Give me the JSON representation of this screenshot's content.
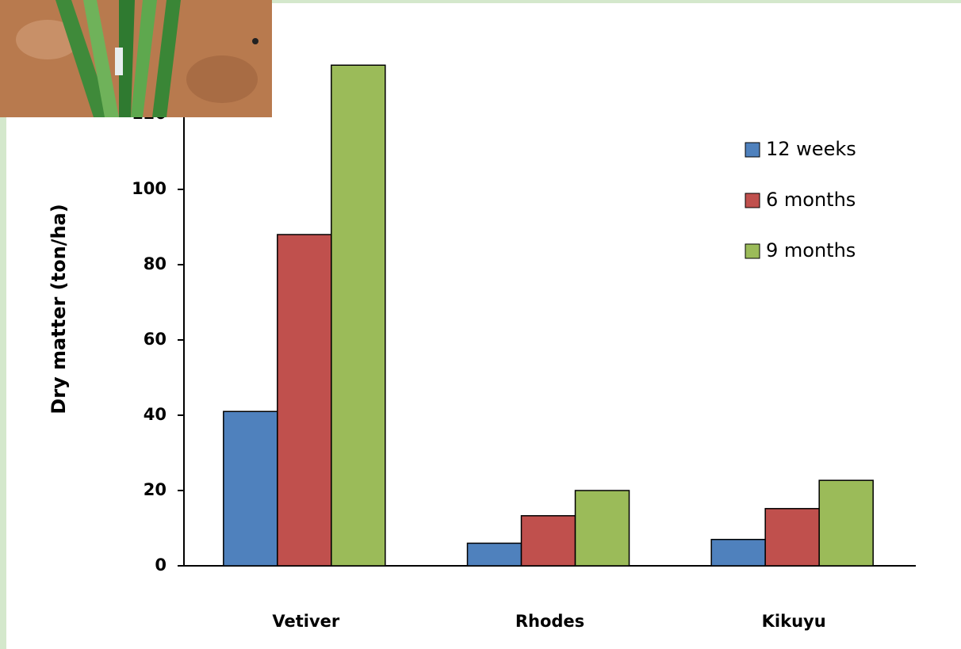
{
  "chart_data": {
    "type": "bar",
    "y_label": "Dry matter (ton/ha)",
    "categories": [
      "Vetiver",
      "Rhodes",
      "Kikuyu"
    ],
    "series": [
      {
        "name": "12 weeks",
        "color": "#4f81bd",
        "values": [
          41,
          6,
          7
        ]
      },
      {
        "name": "6 months",
        "color": "#c0504d",
        "values": [
          88,
          13.3,
          15.2
        ]
      },
      {
        "name": "9 months",
        "color": "#9bbb59",
        "values": [
          133,
          20,
          22.7
        ]
      }
    ],
    "ylim": [
      0,
      140
    ],
    "yticks": [
      0,
      20,
      40,
      60,
      80,
      100,
      120
    ],
    "grid": false,
    "legend": "upper right"
  }
}
